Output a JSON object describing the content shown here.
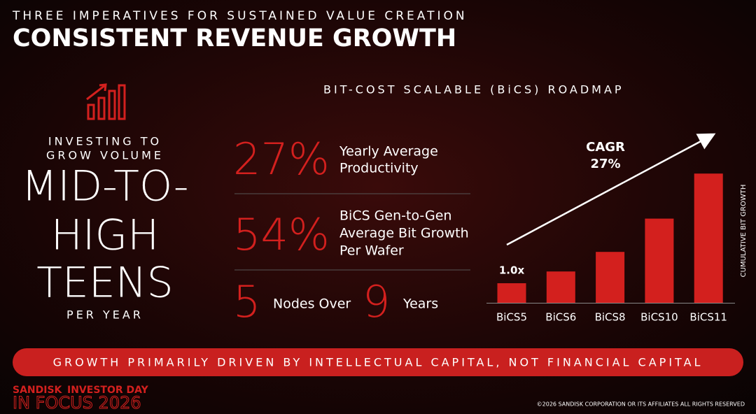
{
  "header": {
    "kicker": "THREE IMPERATIVES FOR SUSTAINED VALUE CREATION",
    "title": "CONSISTENT REVENUE GROWTH"
  },
  "left": {
    "lead": [
      "INVESTING TO",
      "GROW VOLUME"
    ],
    "headline": [
      "MID-TO-",
      "HIGH",
      "TEENS"
    ],
    "tail": "PER YEAR"
  },
  "roadmap_title": "BIT-COST SCALABLE (BiCS) ROADMAP",
  "stats": [
    {
      "value": "27%",
      "text": [
        "Yearly Average",
        "Productivity"
      ]
    },
    {
      "value": "54%",
      "text": [
        "BiCS Gen-to-Gen",
        "Average Bit Growth",
        "Per Wafer"
      ]
    }
  ],
  "nodes": {
    "count": "5",
    "label": "Nodes Over",
    "years": "9",
    "years_label": "Years"
  },
  "chart_data": {
    "type": "bar",
    "categories": [
      "BiCS5",
      "BiCS6",
      "BiCS8",
      "BiCS10",
      "BiCS11"
    ],
    "values": [
      1.0,
      1.6,
      2.6,
      4.3,
      6.6
    ],
    "value_labels": [
      "1.0x",
      null,
      null,
      null,
      null
    ],
    "color": "#d3201e",
    "ylabel": "CUMULATIVE BIT GROWTH",
    "annotation": [
      "CAGR",
      "27%"
    ]
  },
  "banner": "GROWTH PRIMARILY DRIVEN BY INTELLECTUAL CAPITAL, NOT FINANCIAL CAPITAL",
  "footer": {
    "brand": "SANDISK",
    "event": "INVESTOR DAY",
    "tagline": "IN FOCUS 2026",
    "copyright": "©2026 SANDISK CORPORATION OR ITS AFFILIATES ALL RIGHTS RESERVED"
  }
}
